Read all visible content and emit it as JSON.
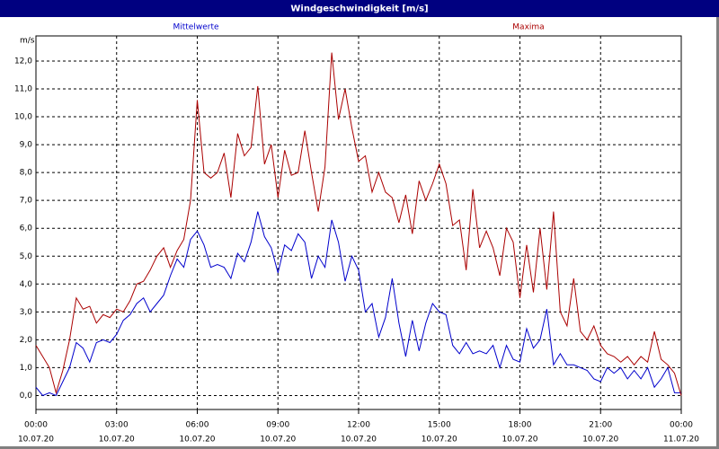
{
  "chart_data": {
    "type": "line",
    "title": "Windgeschwindigkeit [m/s]",
    "y_label": "m/s",
    "x": [
      0,
      0.25,
      0.5,
      0.75,
      1,
      1.25,
      1.5,
      1.75,
      2,
      2.25,
      2.5,
      2.75,
      3,
      3.25,
      3.5,
      3.75,
      4,
      4.25,
      4.5,
      4.75,
      5,
      5.25,
      5.5,
      5.75,
      6,
      6.25,
      6.5,
      6.75,
      7,
      7.25,
      7.5,
      7.75,
      8,
      8.25,
      8.5,
      8.75,
      9,
      9.25,
      9.5,
      9.75,
      10,
      10.25,
      10.5,
      10.75,
      11,
      11.25,
      11.5,
      11.75,
      12,
      12.25,
      12.5,
      12.75,
      13,
      13.25,
      13.5,
      13.75,
      14,
      14.25,
      14.5,
      14.75,
      15,
      15.25,
      15.5,
      15.75,
      16,
      16.25,
      16.5,
      16.75,
      17,
      17.25,
      17.5,
      17.75,
      18,
      18.25,
      18.5,
      18.75,
      19,
      19.25,
      19.5,
      19.75,
      20,
      20.25,
      20.5,
      20.75,
      21,
      21.25,
      21.5,
      21.75,
      22,
      22.25,
      22.5,
      22.75,
      23,
      23.25,
      23.5,
      23.75,
      24
    ],
    "series": [
      {
        "name": "Mittelwerte",
        "color": "#0000cc",
        "values": [
          0.3,
          0.0,
          0.1,
          0.0,
          0.5,
          1.0,
          1.9,
          1.7,
          1.2,
          1.9,
          2.0,
          1.9,
          2.2,
          2.7,
          2.9,
          3.3,
          3.5,
          3.0,
          3.3,
          3.6,
          4.3,
          4.9,
          4.6,
          5.6,
          5.9,
          5.4,
          4.6,
          4.7,
          4.6,
          4.2,
          5.1,
          4.8,
          5.5,
          6.6,
          5.7,
          5.3,
          4.4,
          5.4,
          5.2,
          5.8,
          5.5,
          4.2,
          5.0,
          4.6,
          6.3,
          5.5,
          4.1,
          5.0,
          4.5,
          3.0,
          3.3,
          2.1,
          2.8,
          4.2,
          2.6,
          1.4,
          2.7,
          1.6,
          2.6,
          3.3,
          3.0,
          2.9,
          1.8,
          1.5,
          1.9,
          1.5,
          1.6,
          1.5,
          1.8,
          1.0,
          1.8,
          1.3,
          1.2,
          2.4,
          1.7,
          2.0,
          3.1,
          1.1,
          1.5,
          1.1,
          1.1,
          1.0,
          0.9,
          0.6,
          0.5,
          1.0,
          0.8,
          1.0,
          0.6,
          0.9,
          0.6,
          1.0,
          0.3,
          0.6,
          1.0,
          0.1,
          0.1
        ]
      },
      {
        "name": "Maxima",
        "color": "#aa0000",
        "values": [
          1.8,
          1.4,
          1.0,
          0.1,
          0.9,
          2.0,
          3.5,
          3.1,
          3.2,
          2.6,
          2.9,
          2.8,
          3.1,
          3.0,
          3.4,
          4.0,
          4.1,
          4.5,
          5.0,
          5.3,
          4.6,
          5.2,
          5.6,
          7.0,
          10.6,
          8.0,
          7.8,
          8.0,
          8.7,
          7.1,
          9.4,
          8.6,
          8.9,
          11.1,
          8.3,
          9.0,
          7.1,
          8.8,
          7.9,
          8.0,
          9.5,
          8.0,
          6.6,
          8.2,
          12.3,
          9.9,
          11.0,
          9.6,
          8.4,
          8.6,
          7.3,
          8.0,
          7.3,
          7.1,
          6.2,
          7.2,
          5.8,
          7.7,
          7.0,
          7.6,
          8.3,
          7.6,
          6.1,
          6.3,
          4.5,
          7.4,
          5.3,
          5.9,
          5.3,
          4.3,
          6.0,
          5.5,
          3.5,
          5.4,
          3.7,
          6.0,
          3.8,
          6.6,
          3.0,
          2.5,
          4.2,
          2.3,
          2.0,
          2.5,
          1.8,
          1.5,
          1.4,
          1.2,
          1.4,
          1.1,
          1.4,
          1.2,
          2.3,
          1.3,
          1.1,
          0.8,
          0.0
        ]
      }
    ],
    "xlim": [
      0,
      24
    ],
    "xticks": [
      {
        "value": 0,
        "label": "00:00",
        "sublabel": "10.07.20"
      },
      {
        "value": 3,
        "label": "03:00",
        "sublabel": "10.07.20"
      },
      {
        "value": 6,
        "label": "06:00",
        "sublabel": "10.07.20"
      },
      {
        "value": 9,
        "label": "09:00",
        "sublabel": "10.07.20"
      },
      {
        "value": 12,
        "label": "12:00",
        "sublabel": "10.07.20"
      },
      {
        "value": 15,
        "label": "15:00",
        "sublabel": "10.07.20"
      },
      {
        "value": 18,
        "label": "18:00",
        "sublabel": "10.07.20"
      },
      {
        "value": 21,
        "label": "21:00",
        "sublabel": "10.07.20"
      },
      {
        "value": 24,
        "label": "00:00",
        "sublabel": "11.07.20"
      }
    ],
    "ylim": [
      -0.5,
      12.9
    ],
    "yticks": [
      {
        "value": 0,
        "label": "0,0"
      },
      {
        "value": 1,
        "label": "1,0"
      },
      {
        "value": 2,
        "label": "2,0"
      },
      {
        "value": 3,
        "label": "3,0"
      },
      {
        "value": 4,
        "label": "4,0"
      },
      {
        "value": 5,
        "label": "5,0"
      },
      {
        "value": 6,
        "label": "6,0"
      },
      {
        "value": 7,
        "label": "7,0"
      },
      {
        "value": 8,
        "label": "8,0"
      },
      {
        "value": 9,
        "label": "9,0"
      },
      {
        "value": 10,
        "label": "10,0"
      },
      {
        "value": 11,
        "label": "11,0"
      },
      {
        "value": 12,
        "label": "12,0"
      }
    ],
    "grid": true
  }
}
